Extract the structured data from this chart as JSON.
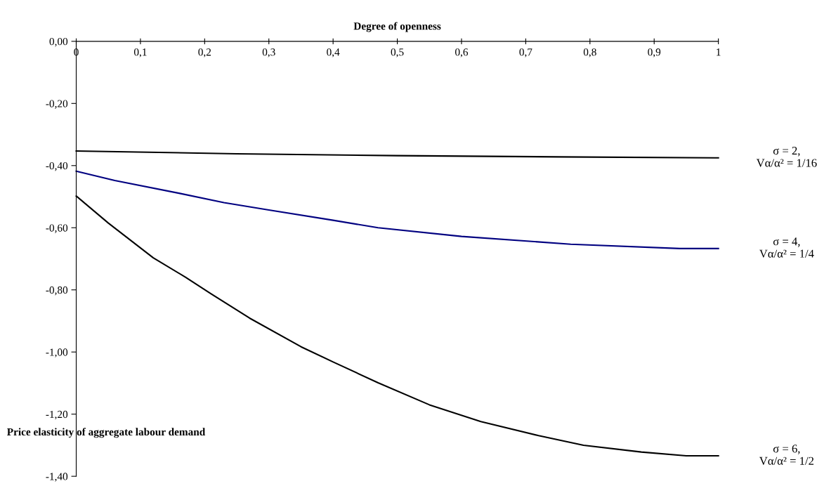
{
  "chart_data": {
    "type": "line",
    "xlabel": "Degree of openness",
    "ylabel": "Price elasticity of aggregate labour demand",
    "xlim": [
      0,
      1
    ],
    "ylim": [
      -1.4,
      0
    ],
    "xticks": [
      0,
      {
        "value": 0.1,
        "label": "0,1"
      },
      {
        "value": 0.2,
        "label": "0,2"
      },
      {
        "value": 0.3,
        "label": "0,3"
      },
      {
        "value": 0.4,
        "label": "0,4"
      },
      {
        "value": 0.5,
        "label": "0,5"
      },
      {
        "value": 0.6,
        "label": "0,6"
      },
      {
        "value": 0.7,
        "label": "0,7"
      },
      {
        "value": 0.8,
        "label": "0,8"
      },
      {
        "value": 0.9,
        "label": "0,9"
      },
      1
    ],
    "yticks": [
      {
        "value": 0,
        "label": "0,00"
      },
      {
        "value": -0.2,
        "label": "-0,20"
      },
      {
        "value": -0.4,
        "label": "-0,40"
      },
      {
        "value": -0.6,
        "label": "-0,60"
      },
      {
        "value": -0.8,
        "label": "-0,80"
      },
      {
        "value": -1.0,
        "label": "-1,00"
      },
      {
        "value": -1.2,
        "label": "-1,20"
      },
      {
        "value": -1.4,
        "label": "-1,40"
      }
    ],
    "grid": false,
    "legend": false,
    "series": [
      {
        "name": "σ = 2,\nVα/α² = 1/16",
        "color": "#000000",
        "x": [
          0,
          0.25,
          0.5,
          0.75,
          1
        ],
        "values": [
          -0.353,
          -0.362,
          -0.368,
          -0.372,
          -0.375
        ]
      },
      {
        "name": "σ = 4,\nVα/α² = 1/4",
        "color": "#000080",
        "x": [
          0,
          0.06,
          0.16,
          0.23,
          0.3,
          0.4,
          0.47,
          0.6,
          0.77,
          0.94,
          1
        ],
        "values": [
          -0.418,
          -0.448,
          -0.489,
          -0.519,
          -0.543,
          -0.576,
          -0.6,
          -0.628,
          -0.653,
          -0.667,
          -0.667
        ]
      },
      {
        "name": "σ = 6,\nVα/α² = 1/2",
        "color": "#000000",
        "x": [
          0,
          0.05,
          0.12,
          0.17,
          0.21,
          0.27,
          0.35,
          0.4,
          0.47,
          0.55,
          0.63,
          0.72,
          0.79,
          0.88,
          0.95,
          1
        ],
        "values": [
          -0.498,
          -0.585,
          -0.697,
          -0.759,
          -0.813,
          -0.891,
          -0.983,
          -1.032,
          -1.099,
          -1.17,
          -1.224,
          -1.269,
          -1.3,
          -1.322,
          -1.334,
          -1.334
        ]
      }
    ]
  }
}
